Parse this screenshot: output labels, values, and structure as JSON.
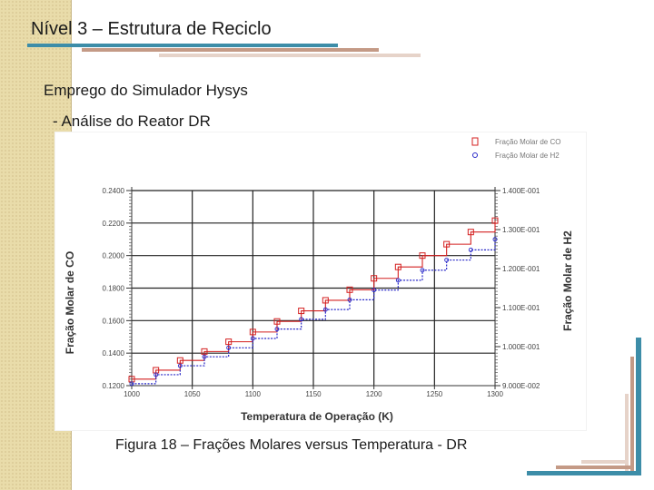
{
  "slide": {
    "title": "Nível 3 – Estrutura de Reciclo",
    "section": "Emprego do Simulador Hysys",
    "subsection": "- Análise do Reator DR",
    "caption": "Figura 18 – Frações Molares versus Temperatura - DR"
  },
  "colors": {
    "co_series": "#d42020",
    "h2_series": "#2828c8",
    "band": "#e9dcaa",
    "accent": "#3d8da8"
  },
  "chart_data": {
    "type": "line",
    "xlabel": "Temperatura de Operação (K)",
    "ylabel_left": "Fração Molar de CO",
    "ylabel_right": "Fração Molar de H2",
    "xlim": [
      1000,
      1300
    ],
    "ylim_left": [
      0.12,
      0.24
    ],
    "ylim_right": [
      0.09,
      0.14
    ],
    "x_ticks": [
      1000,
      1050,
      1100,
      1150,
      1200,
      1250,
      1300
    ],
    "x_tick_labels": [
      "1000",
      "1050",
      "1100",
      "1150",
      "1200",
      "1250",
      "1300"
    ],
    "y_left_ticks": [
      0.12,
      0.14,
      0.16,
      0.18,
      0.2,
      0.22,
      0.24
    ],
    "y_left_tick_labels": [
      "0.1200",
      "0.1400",
      "0.1600",
      "0.1800",
      "0.2000",
      "0.2200",
      "0.2400"
    ],
    "y_right_ticks": [
      0.09,
      0.1,
      0.11,
      0.12,
      0.13,
      0.14
    ],
    "y_right_tick_labels": [
      "9.000E-002",
      "1.000E-001",
      "1.100E-001",
      "1.200E-001",
      "1.300E-001",
      "1.400E-001"
    ],
    "grid": true,
    "legend_position": "top-right",
    "series": [
      {
        "name": "Fração Molar de CO",
        "axis": "left",
        "marker": "square",
        "x": [
          1000,
          1020,
          1040,
          1060,
          1080,
          1100,
          1120,
          1140,
          1160,
          1180,
          1200,
          1220,
          1240,
          1260,
          1280,
          1300
        ],
        "y": [
          0.124,
          0.1295,
          0.1355,
          0.141,
          0.147,
          0.153,
          0.1595,
          0.166,
          0.1725,
          0.179,
          0.186,
          0.193,
          0.2,
          0.207,
          0.2145,
          0.2215
        ]
      },
      {
        "name": "Fração Molar de H2",
        "axis": "right",
        "marker": "circle",
        "x": [
          1000,
          1020,
          1040,
          1060,
          1080,
          1100,
          1120,
          1140,
          1160,
          1180,
          1200,
          1220,
          1240,
          1260,
          1280,
          1300
        ],
        "y": [
          0.0905,
          0.0928,
          0.0951,
          0.0974,
          0.0997,
          0.1021,
          0.1045,
          0.107,
          0.1095,
          0.112,
          0.1145,
          0.117,
          0.1196,
          0.1222,
          0.1248,
          0.1275
        ]
      }
    ]
  }
}
